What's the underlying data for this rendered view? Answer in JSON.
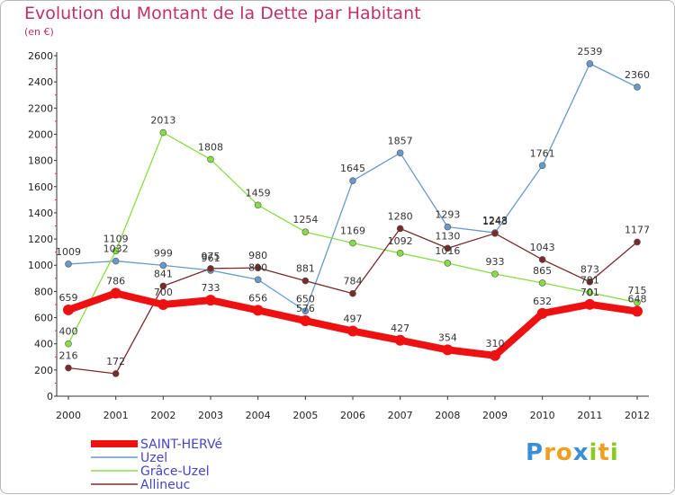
{
  "chart_data": {
    "type": "line",
    "title": "Evolution du Montant de la Dette par Habitant",
    "subtitle": "(en €)",
    "x": [
      "2000",
      "2001",
      "2002",
      "2003",
      "2004",
      "2005",
      "2006",
      "2007",
      "2008",
      "2009",
      "2010",
      "2011",
      "2012"
    ],
    "ylim": [
      0,
      2600
    ],
    "yticks": [
      0,
      200,
      400,
      600,
      800,
      1000,
      1200,
      1400,
      1600,
      1800,
      2000,
      2200,
      2400,
      2600
    ],
    "grid": false,
    "legend_position": "bottom-left",
    "series": [
      {
        "name": "SAINT-HERVé",
        "color": "#ee1111",
        "values": [
          659,
          786,
          700,
          733,
          656,
          576,
          497,
          427,
          354,
          310,
          632,
          701,
          648
        ]
      },
      {
        "name": "Uzel",
        "color": "#6699cc",
        "values": [
          1009,
          1032,
          999,
          961,
          890,
          650,
          1645,
          1857,
          1293,
          1248,
          1761,
          2539,
          2360
        ]
      },
      {
        "name": "Grâce-Uzel",
        "color": "#88dd44",
        "values": [
          400,
          1109,
          2013,
          1808,
          1459,
          1254,
          1169,
          1092,
          1016,
          933,
          865,
          791,
          715
        ]
      },
      {
        "name": "Allineuc",
        "color": "#7a2a2a",
        "values": [
          216,
          172,
          841,
          975,
          980,
          881,
          784,
          1280,
          1130,
          1243,
          1043,
          873,
          1177
        ]
      }
    ]
  },
  "brand": {
    "letters": [
      "P",
      "r",
      "o",
      "x",
      "i",
      "t",
      "i"
    ],
    "colors": [
      "#3a8fd8",
      "#f0a020",
      "#f0a020",
      "#3a8fd8",
      "#88cc22",
      "#f0a020",
      "#88cc22"
    ]
  }
}
